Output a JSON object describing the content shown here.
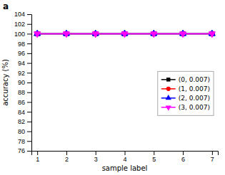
{
  "chart_data": {
    "type": "line",
    "x": [
      1,
      2,
      3,
      4,
      5,
      6,
      7
    ],
    "series": [
      {
        "name": "(0, 0.007)",
        "color": "#000000",
        "marker": "square",
        "values": [
          100,
          100,
          100,
          100,
          100,
          100,
          100
        ]
      },
      {
        "name": "(1, 0.007)",
        "color": "#ff0000",
        "marker": "circle",
        "values": [
          100,
          100,
          100,
          100,
          100,
          100,
          100
        ]
      },
      {
        "name": "(2, 0.007)",
        "color": "#0000ff",
        "marker": "triangle-up",
        "values": [
          100,
          100,
          100,
          100,
          100,
          100,
          100
        ]
      },
      {
        "name": "(3, 0.007)",
        "color": "#ff00ff",
        "marker": "triangle-down",
        "values": [
          100,
          100,
          100,
          100,
          100,
          100,
          100
        ]
      }
    ],
    "xlabel": "sample label",
    "ylabel": "accuracy (%)",
    "xlim": [
      0.8,
      7.2
    ],
    "xticks": [
      1,
      2,
      3,
      4,
      5,
      6,
      7
    ],
    "ylim": [
      76,
      104
    ],
    "yticks": [
      76,
      78,
      80,
      82,
      84,
      86,
      88,
      90,
      92,
      94,
      96,
      98,
      100,
      102,
      104
    ],
    "grid": false,
    "legend": "right",
    "annotations": [
      "a"
    ]
  }
}
